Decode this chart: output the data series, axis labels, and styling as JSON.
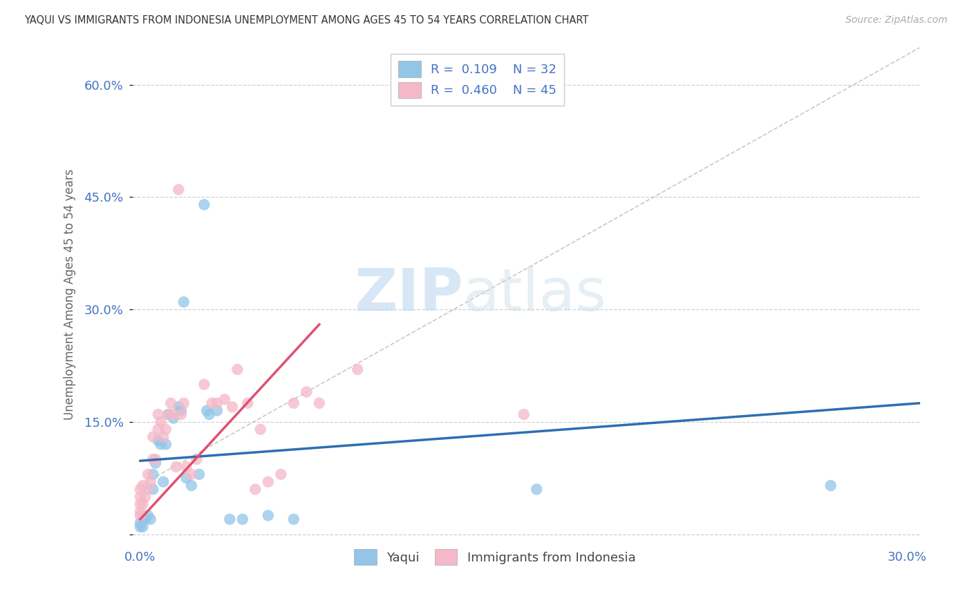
{
  "title": "YAQUI VS IMMIGRANTS FROM INDONESIA UNEMPLOYMENT AMONG AGES 45 TO 54 YEARS CORRELATION CHART",
  "source": "Source: ZipAtlas.com",
  "ylabel": "Unemployment Among Ages 45 to 54 years",
  "xlim": [
    -0.003,
    0.305
  ],
  "ylim": [
    -0.01,
    0.65
  ],
  "xticks": [
    0.0,
    0.05,
    0.1,
    0.15,
    0.2,
    0.25,
    0.3
  ],
  "xticklabels": [
    "0.0%",
    "",
    "",
    "",
    "",
    "",
    "30.0%"
  ],
  "yticks": [
    0.0,
    0.15,
    0.3,
    0.45,
    0.6
  ],
  "yticklabels": [
    "",
    "15.0%",
    "30.0%",
    "45.0%",
    "60.0%"
  ],
  "legend_labels": [
    "Yaqui",
    "Immigrants from Indonesia"
  ],
  "legend_r": [
    0.109,
    0.46
  ],
  "legend_n": [
    32,
    45
  ],
  "watermark_zip": "ZIP",
  "watermark_atlas": "atlas",
  "color_blue": "#92c5e8",
  "color_pink": "#f4b8c8",
  "color_trend_blue": "#2e6db4",
  "color_trend_pink": "#e05070",
  "color_diag": "#c8c8c8",
  "color_grid": "#d0d0d0",
  "color_tick": "#4472c4",
  "background": "#ffffff",
  "yaqui_x": [
    0.0,
    0.0,
    0.001,
    0.001,
    0.002,
    0.003,
    0.004,
    0.005,
    0.005,
    0.006,
    0.007,
    0.008,
    0.009,
    0.01,
    0.011,
    0.013,
    0.015,
    0.016,
    0.017,
    0.018,
    0.02,
    0.023,
    0.025,
    0.026,
    0.027,
    0.03,
    0.035,
    0.04,
    0.05,
    0.06,
    0.155,
    0.27
  ],
  "yaqui_y": [
    0.01,
    0.015,
    0.01,
    0.02,
    0.02,
    0.025,
    0.02,
    0.08,
    0.06,
    0.095,
    0.125,
    0.12,
    0.07,
    0.12,
    0.16,
    0.155,
    0.17,
    0.165,
    0.31,
    0.075,
    0.065,
    0.08,
    0.44,
    0.165,
    0.16,
    0.165,
    0.02,
    0.02,
    0.025,
    0.02,
    0.06,
    0.065
  ],
  "indo_x": [
    0.0,
    0.0,
    0.0,
    0.0,
    0.0,
    0.001,
    0.001,
    0.002,
    0.003,
    0.003,
    0.004,
    0.005,
    0.005,
    0.006,
    0.007,
    0.007,
    0.008,
    0.009,
    0.01,
    0.011,
    0.012,
    0.013,
    0.014,
    0.015,
    0.016,
    0.017,
    0.018,
    0.02,
    0.022,
    0.025,
    0.028,
    0.03,
    0.033,
    0.036,
    0.038,
    0.042,
    0.045,
    0.047,
    0.05,
    0.055,
    0.06,
    0.065,
    0.07,
    0.085,
    0.15
  ],
  "indo_y": [
    0.025,
    0.03,
    0.04,
    0.05,
    0.06,
    0.04,
    0.065,
    0.05,
    0.06,
    0.08,
    0.07,
    0.1,
    0.13,
    0.1,
    0.14,
    0.16,
    0.15,
    0.13,
    0.14,
    0.16,
    0.175,
    0.16,
    0.09,
    0.46,
    0.16,
    0.175,
    0.09,
    0.08,
    0.1,
    0.2,
    0.175,
    0.175,
    0.18,
    0.17,
    0.22,
    0.175,
    0.06,
    0.14,
    0.07,
    0.08,
    0.175,
    0.19,
    0.175,
    0.22,
    0.16
  ],
  "blue_trend_x": [
    0.0,
    0.305
  ],
  "blue_trend_y": [
    0.098,
    0.175
  ],
  "pink_trend_x": [
    0.0,
    0.07
  ],
  "pink_trend_y": [
    0.02,
    0.28
  ]
}
